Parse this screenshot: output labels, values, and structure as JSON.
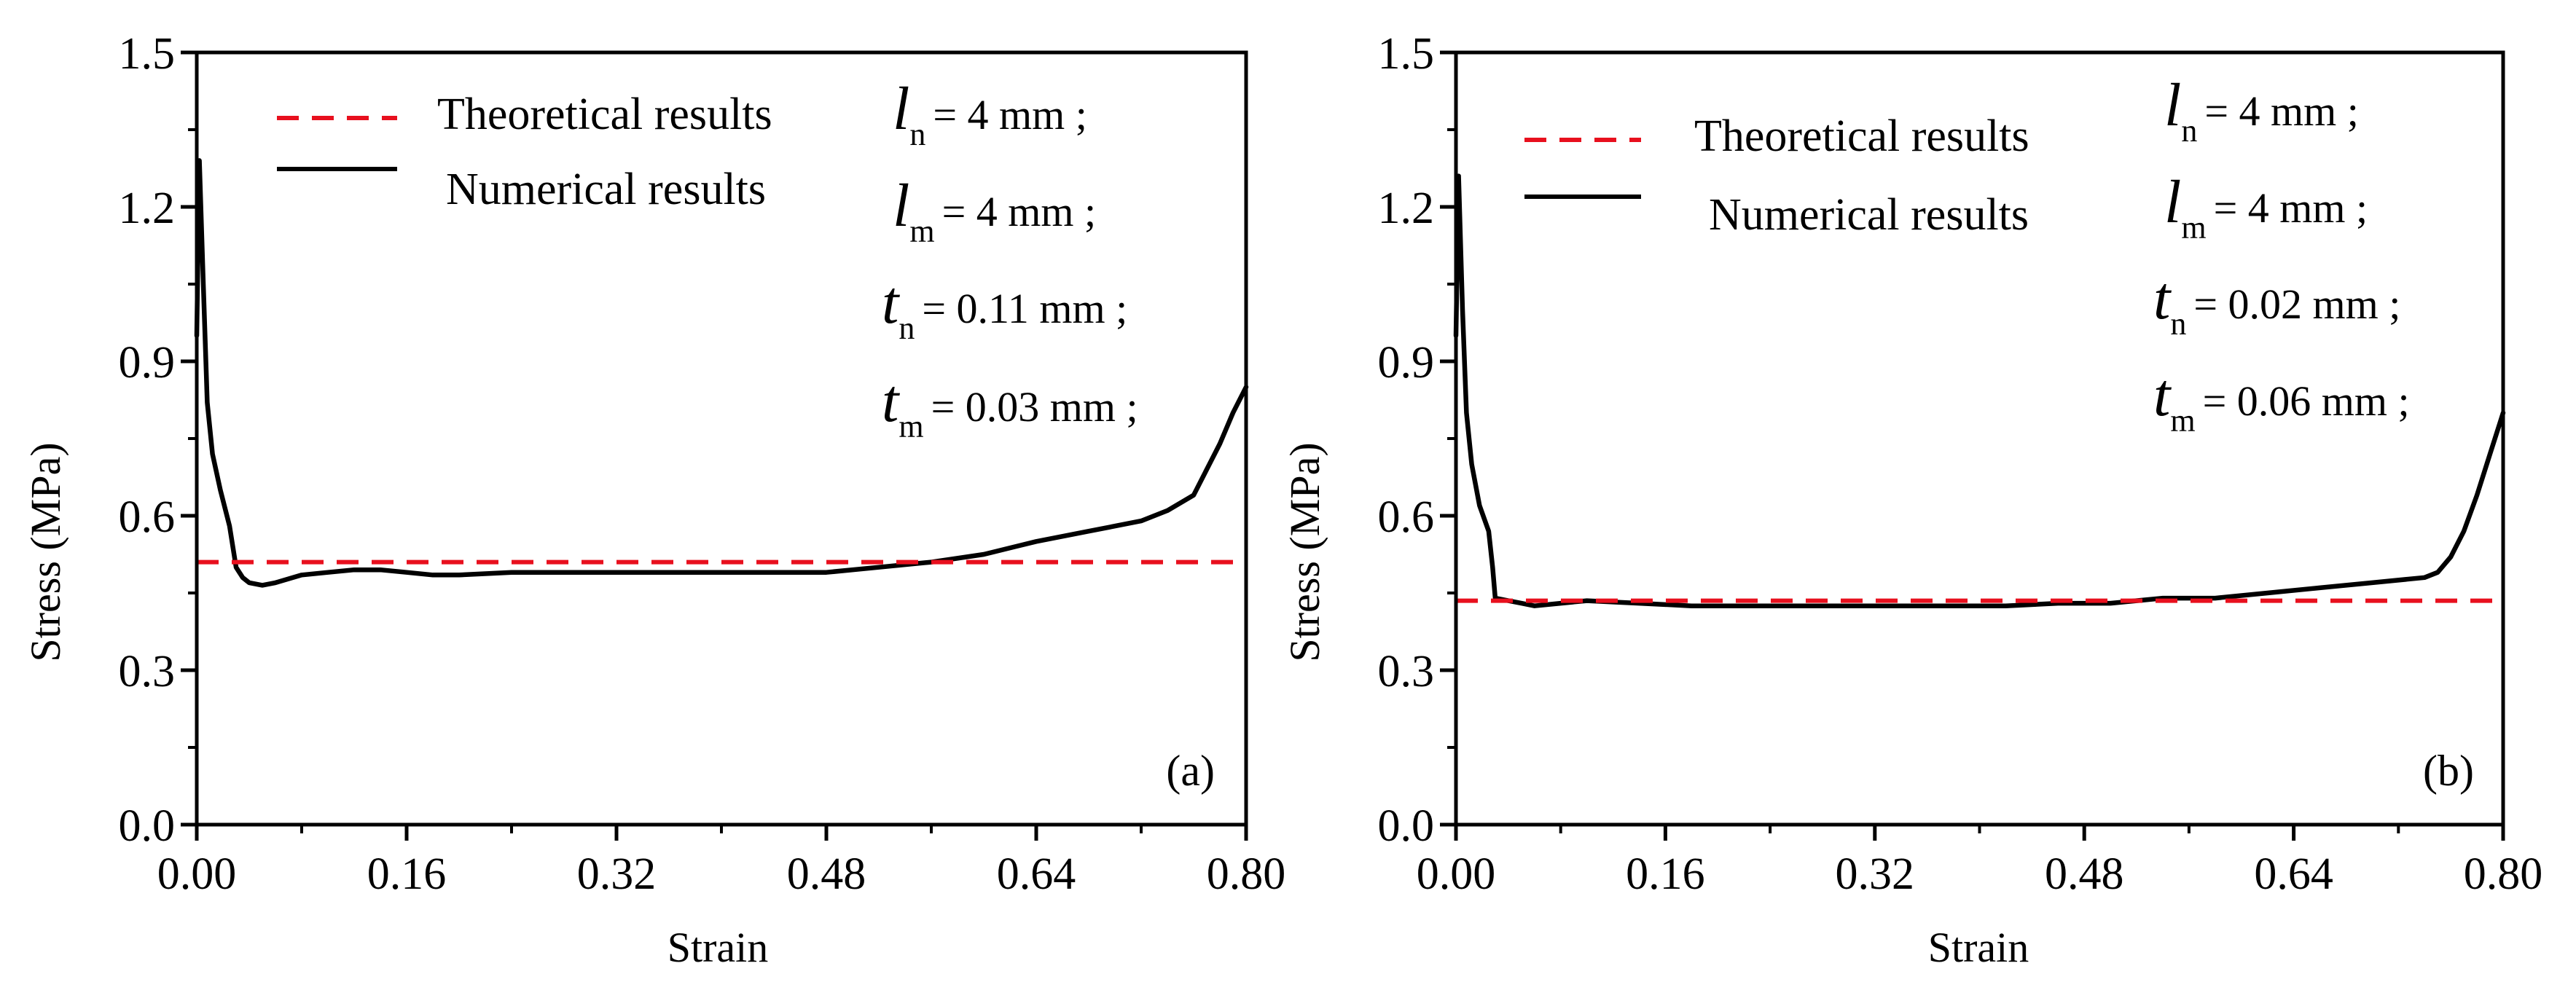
{
  "chart_data": [
    {
      "type": "line",
      "panel_label": "(a)",
      "xlabel": "Strain",
      "ylabel": "Stress  (MPa)",
      "xlim": [
        0,
        0.8
      ],
      "ylim": [
        0,
        1.5
      ],
      "xticks": [
        "0.00",
        "0.16",
        "0.32",
        "0.48",
        "0.64",
        "0.80"
      ],
      "yticks": [
        "0.0",
        "0.3",
        "0.6",
        "0.9",
        "1.2",
        "1.5"
      ],
      "legend": [
        "Theoretical results",
        "Numerical results"
      ],
      "params": [
        {
          "var": "l",
          "sub": "n",
          "text": "= 4 mm ;"
        },
        {
          "var": "l",
          "sub": "m",
          "text": "= 4 mm ;"
        },
        {
          "var": "t",
          "sub": "n",
          "text": "= 0.11 mm ;"
        },
        {
          "var": "t",
          "sub": "m",
          "text": "= 0.03 mm ;"
        }
      ],
      "series": [
        {
          "name": "Theoretical results",
          "color": "#e8101e",
          "dash": true,
          "x": [
            0,
            0.8
          ],
          "y": [
            0.51,
            0.51
          ]
        },
        {
          "name": "Numerical results",
          "color": "#000000",
          "dash": false,
          "x": [
            0,
            0.002,
            0.005,
            0.008,
            0.012,
            0.018,
            0.025,
            0.03,
            0.035,
            0.04,
            0.05,
            0.06,
            0.08,
            0.1,
            0.12,
            0.14,
            0.16,
            0.18,
            0.2,
            0.24,
            0.28,
            0.32,
            0.36,
            0.4,
            0.44,
            0.48,
            0.52,
            0.56,
            0.6,
            0.64,
            0.68,
            0.72,
            0.74,
            0.76,
            0.77,
            0.78,
            0.79,
            0.8
          ],
          "y": [
            0.95,
            1.29,
            1.05,
            0.82,
            0.72,
            0.65,
            0.58,
            0.5,
            0.48,
            0.47,
            0.465,
            0.47,
            0.485,
            0.49,
            0.495,
            0.495,
            0.49,
            0.485,
            0.485,
            0.49,
            0.49,
            0.49,
            0.49,
            0.49,
            0.49,
            0.49,
            0.5,
            0.51,
            0.525,
            0.55,
            0.57,
            0.59,
            0.61,
            0.64,
            0.69,
            0.74,
            0.8,
            0.85
          ]
        }
      ]
    },
    {
      "type": "line",
      "panel_label": "(b)",
      "xlabel": "Strain",
      "ylabel": "Stress  (MPa)",
      "xlim": [
        0,
        0.8
      ],
      "ylim": [
        0,
        1.5
      ],
      "xticks": [
        "0.00",
        "0.16",
        "0.32",
        "0.48",
        "0.64",
        "0.80"
      ],
      "yticks": [
        "0.0",
        "0.3",
        "0.6",
        "0.9",
        "1.2",
        "1.5"
      ],
      "legend": [
        "Theoretical results",
        "Numerical results"
      ],
      "params": [
        {
          "var": "l",
          "sub": "n",
          "text": "= 4 mm ;"
        },
        {
          "var": "l",
          "sub": "m",
          "text": "= 4 mm ;"
        },
        {
          "var": "t",
          "sub": "n",
          "text": "= 0.02 mm ;"
        },
        {
          "var": "t",
          "sub": "m",
          "text": "= 0.06 mm ;"
        }
      ],
      "series": [
        {
          "name": "Theoretical results",
          "color": "#e8101e",
          "dash": true,
          "x": [
            0,
            0.8
          ],
          "y": [
            0.435,
            0.435
          ]
        },
        {
          "name": "Numerical results",
          "color": "#000000",
          "dash": false,
          "x": [
            0,
            0.002,
            0.005,
            0.008,
            0.012,
            0.018,
            0.025,
            0.028,
            0.03,
            0.04,
            0.05,
            0.06,
            0.08,
            0.1,
            0.14,
            0.18,
            0.22,
            0.26,
            0.3,
            0.34,
            0.38,
            0.42,
            0.46,
            0.5,
            0.54,
            0.58,
            0.62,
            0.66,
            0.7,
            0.74,
            0.75,
            0.76,
            0.77,
            0.78,
            0.79,
            0.8
          ],
          "y": [
            0.95,
            1.26,
            1.0,
            0.8,
            0.7,
            0.62,
            0.57,
            0.5,
            0.44,
            0.435,
            0.43,
            0.425,
            0.43,
            0.435,
            0.43,
            0.425,
            0.425,
            0.425,
            0.425,
            0.425,
            0.425,
            0.425,
            0.43,
            0.43,
            0.44,
            0.44,
            0.45,
            0.46,
            0.47,
            0.48,
            0.49,
            0.52,
            0.57,
            0.64,
            0.72,
            0.8
          ]
        }
      ]
    }
  ]
}
